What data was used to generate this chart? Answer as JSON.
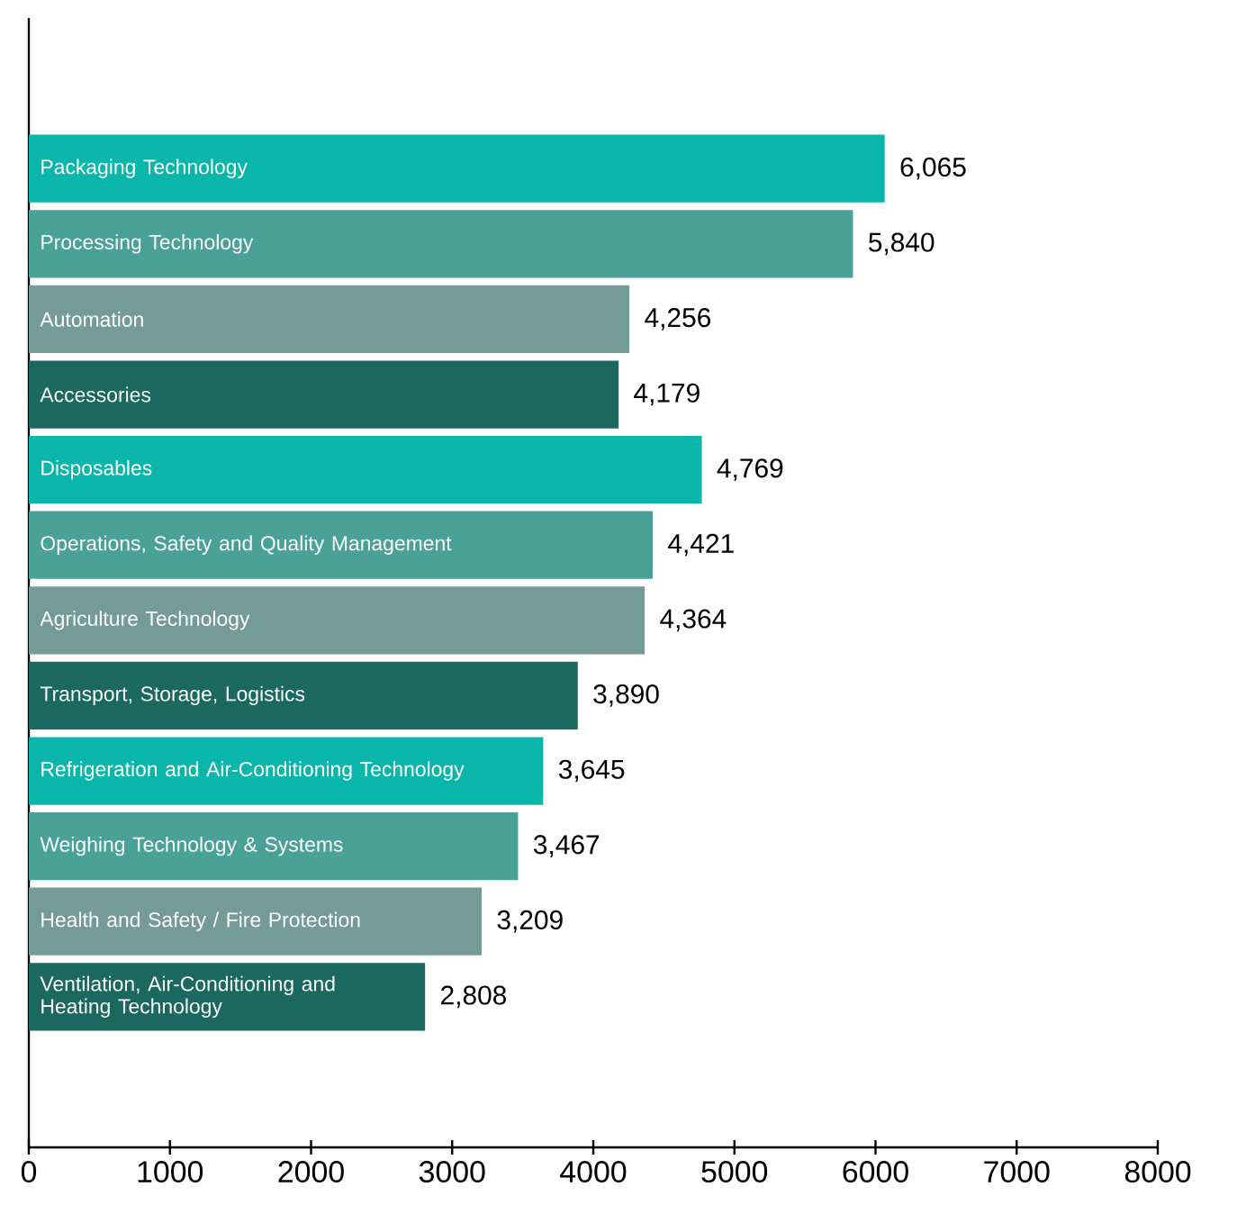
{
  "chart_data": {
    "type": "bar",
    "orientation": "horizontal",
    "categories": [
      "Packaging Technology",
      "Processing Technology",
      "Automation",
      "Accessories",
      "Disposables",
      "Operations, Safety and Quality Management",
      "Agriculture Technology",
      "Transport, Storage, Logistics",
      "Refrigeration and Air-Conditioning Technology",
      "Weighing Technology & Systems",
      "Health and Safety / Fire Protection",
      "Ventilation, Air-Conditioning and Heating Technology"
    ],
    "values": [
      6065,
      5840,
      4256,
      4179,
      4769,
      4421,
      4364,
      3890,
      3645,
      3467,
      3209,
      2808
    ],
    "value_labels": [
      "6,065",
      "5,840",
      "4,256",
      "4,179",
      "4,769",
      "4,421",
      "4,364",
      "3,890",
      "3,645",
      "3,467",
      "3,209",
      "2,808"
    ],
    "colors": [
      "#0ab5aa",
      "#4aa198",
      "#749b95",
      "#1b685e",
      "#0ab5aa",
      "#4aa198",
      "#749b95",
      "#1b685e",
      "#0ab5aa",
      "#4aa198",
      "#749b95",
      "#1b685e"
    ],
    "xlim": [
      0,
      8000
    ],
    "xticks": [
      0,
      1000,
      2000,
      3000,
      4000,
      5000,
      6000,
      7000,
      8000
    ]
  }
}
